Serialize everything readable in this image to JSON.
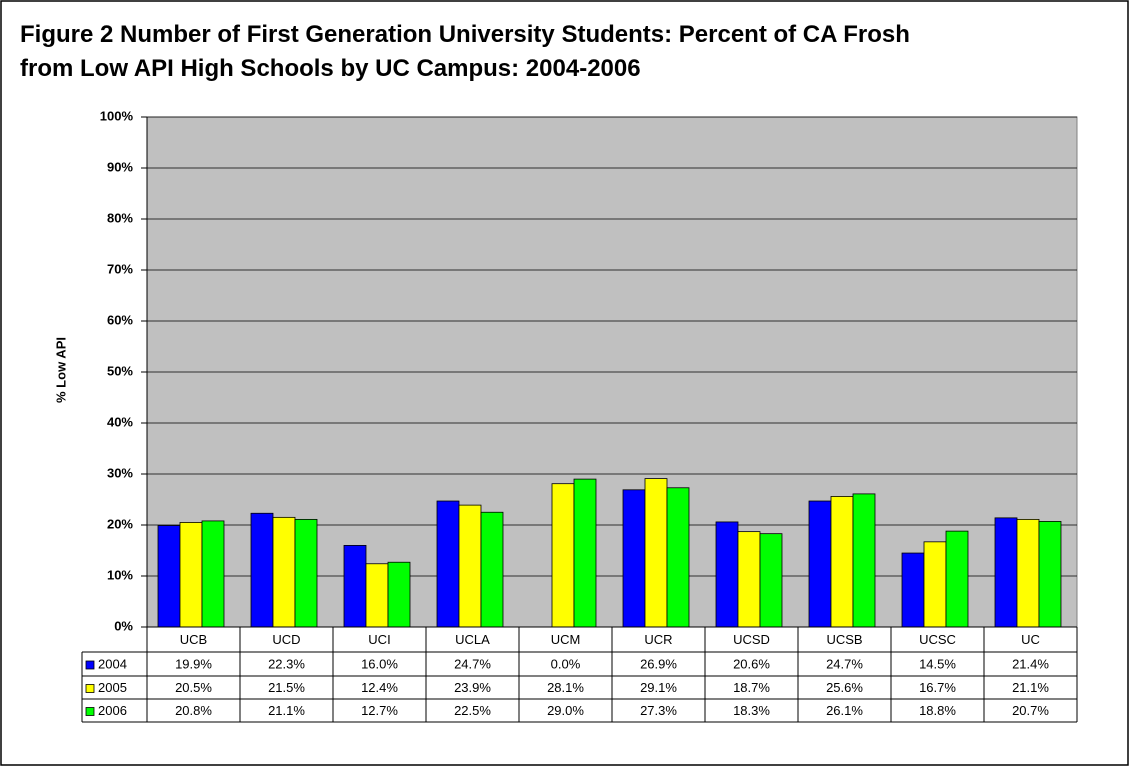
{
  "chart_data": {
    "type": "bar",
    "title": "Figure 2 Number of First Generation University Students: Percent of CA Frosh from Low API High Schools by UC Campus: 2004-2006",
    "y_label": "% Low API",
    "categories": [
      "UCB",
      "UCD",
      "UCI",
      "UCLA",
      "UCM",
      "UCR",
      "UCSD",
      "UCSB",
      "UCSC",
      "UC"
    ],
    "series": [
      {
        "name": "2004",
        "color": "#0000ff",
        "values": [
          19.9,
          22.3,
          16.0,
          24.7,
          0.0,
          26.9,
          20.6,
          24.7,
          14.5,
          21.4
        ],
        "value_labels": [
          "19.9%",
          "22.3%",
          "16.0%",
          "24.7%",
          "0.0%",
          "26.9%",
          "20.6%",
          "24.7%",
          "14.5%",
          "21.4%"
        ]
      },
      {
        "name": "2005",
        "color": "#ffff00",
        "values": [
          20.5,
          21.5,
          12.4,
          23.9,
          28.1,
          29.1,
          18.7,
          25.6,
          16.7,
          21.1
        ],
        "value_labels": [
          "20.5%",
          "21.5%",
          "12.4%",
          "23.9%",
          "28.1%",
          "29.1%",
          "18.7%",
          "25.6%",
          "16.7%",
          "21.1%"
        ]
      },
      {
        "name": "2006",
        "color": "#00ff00",
        "values": [
          20.8,
          21.1,
          12.7,
          22.5,
          29.0,
          27.3,
          18.3,
          26.1,
          18.8,
          20.7
        ],
        "value_labels": [
          "20.8%",
          "21.1%",
          "12.7%",
          "22.5%",
          "29.0%",
          "27.3%",
          "18.3%",
          "26.1%",
          "18.8%",
          "20.7%"
        ]
      }
    ],
    "ylim": [
      0,
      100
    ],
    "yticks": [
      {
        "value": 0,
        "label": "0%"
      },
      {
        "value": 10,
        "label": "10%"
      },
      {
        "value": 20,
        "label": "20%"
      },
      {
        "value": 30,
        "label": "30%"
      },
      {
        "value": 40,
        "label": "40%"
      },
      {
        "value": 50,
        "label": "50%"
      },
      {
        "value": 60,
        "label": "60%"
      },
      {
        "value": 70,
        "label": "70%"
      },
      {
        "value": 80,
        "label": "80%"
      },
      {
        "value": 90,
        "label": "90%"
      },
      {
        "value": 100,
        "label": "100%"
      }
    ],
    "grid": true,
    "plot_background": "#c0c0c0"
  }
}
